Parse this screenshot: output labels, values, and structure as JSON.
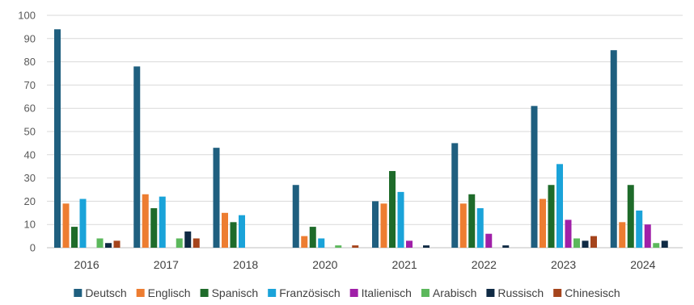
{
  "chart_data": {
    "type": "bar",
    "categories": [
      "2016",
      "2017",
      "2018",
      "2020",
      "2021",
      "2022",
      "2023",
      "2024"
    ],
    "ylim": [
      0,
      100
    ],
    "yticks": [
      0,
      10,
      20,
      30,
      40,
      50,
      60,
      70,
      80,
      90,
      100
    ],
    "grid": true,
    "legend_position": "bottom",
    "series": [
      {
        "name": "Deutsch",
        "color": "#1f5f7f",
        "values": [
          94,
          78,
          43,
          27,
          20,
          45,
          61,
          85
        ]
      },
      {
        "name": "Englisch",
        "color": "#ed7d31",
        "values": [
          19,
          23,
          15,
          5,
          19,
          19,
          21,
          11
        ]
      },
      {
        "name": "Spanisch",
        "color": "#1e6b2a",
        "values": [
          9,
          17,
          11,
          9,
          33,
          23,
          27,
          27
        ]
      },
      {
        "name": "Französisch",
        "color": "#1aa3d9",
        "values": [
          21,
          22,
          14,
          4,
          24,
          17,
          36,
          16
        ]
      },
      {
        "name": "Italienisch",
        "color": "#a020a8",
        "values": [
          0,
          0,
          0,
          0,
          3,
          6,
          12,
          10
        ]
      },
      {
        "name": "Arabisch",
        "color": "#5cb85c",
        "values": [
          4,
          4,
          0,
          1,
          0,
          0,
          4,
          2
        ]
      },
      {
        "name": "Russisch",
        "color": "#0f2a44",
        "values": [
          2,
          7,
          0,
          0,
          1,
          1,
          3,
          3
        ]
      },
      {
        "name": "Chinesisch",
        "color": "#a5441c",
        "values": [
          3,
          4,
          0,
          1,
          0,
          0,
          5,
          0
        ]
      }
    ]
  }
}
